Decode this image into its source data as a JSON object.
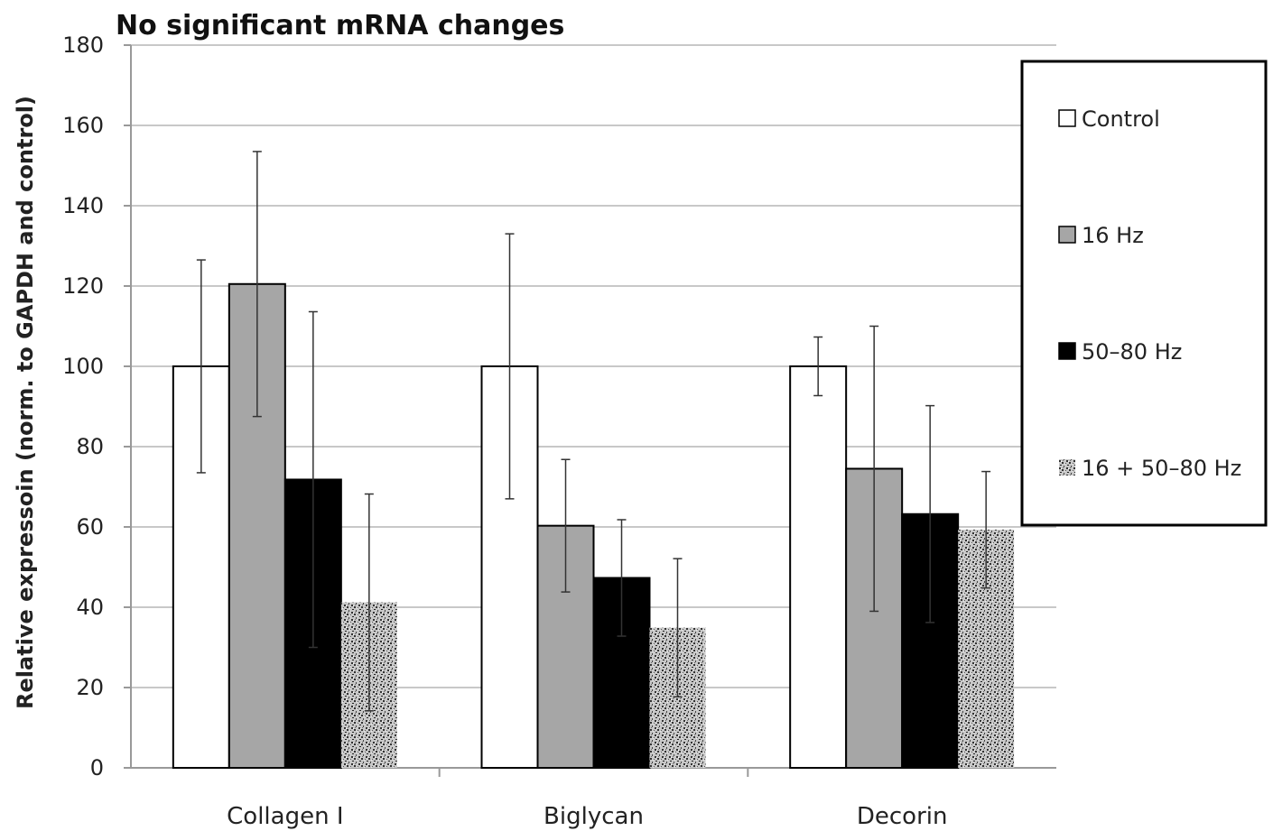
{
  "chart_data": {
    "type": "bar",
    "title": "No significant mRNA changes",
    "ylabel": "Relative expressoin (norm. to GAPDH and control)",
    "xlabel": "",
    "ylim": [
      0,
      180
    ],
    "yticks": [
      "0",
      "20",
      "40",
      "60",
      "80",
      "100",
      "120",
      "140",
      "160",
      "180"
    ],
    "categories": [
      "Collagen I",
      "Biglycan",
      "Decorin"
    ],
    "series": [
      {
        "name": "Control",
        "color": "#ffffff",
        "pattern": "none",
        "values": [
          100,
          100,
          100
        ],
        "errors": [
          26.5,
          33,
          7.3
        ]
      },
      {
        "name": "16 Hz",
        "color": "#a6a6a6",
        "pattern": "none",
        "values": [
          120.5,
          60.3,
          74.5
        ],
        "errors": [
          33,
          16.5,
          35.5
        ]
      },
      {
        "name": "50–80 Hz",
        "color": "#000000",
        "pattern": "none",
        "values": [
          71.8,
          47.3,
          63.2
        ],
        "errors": [
          41.8,
          14.5,
          27
        ]
      },
      {
        "name": "16 + 50–80 Hz",
        "color": "#9a9a9a",
        "pattern": "speckle",
        "values": [
          41.2,
          34.9,
          59.3
        ],
        "errors": [
          27,
          17.2,
          14.5
        ]
      }
    ],
    "grid": true,
    "legend_position": "right"
  }
}
